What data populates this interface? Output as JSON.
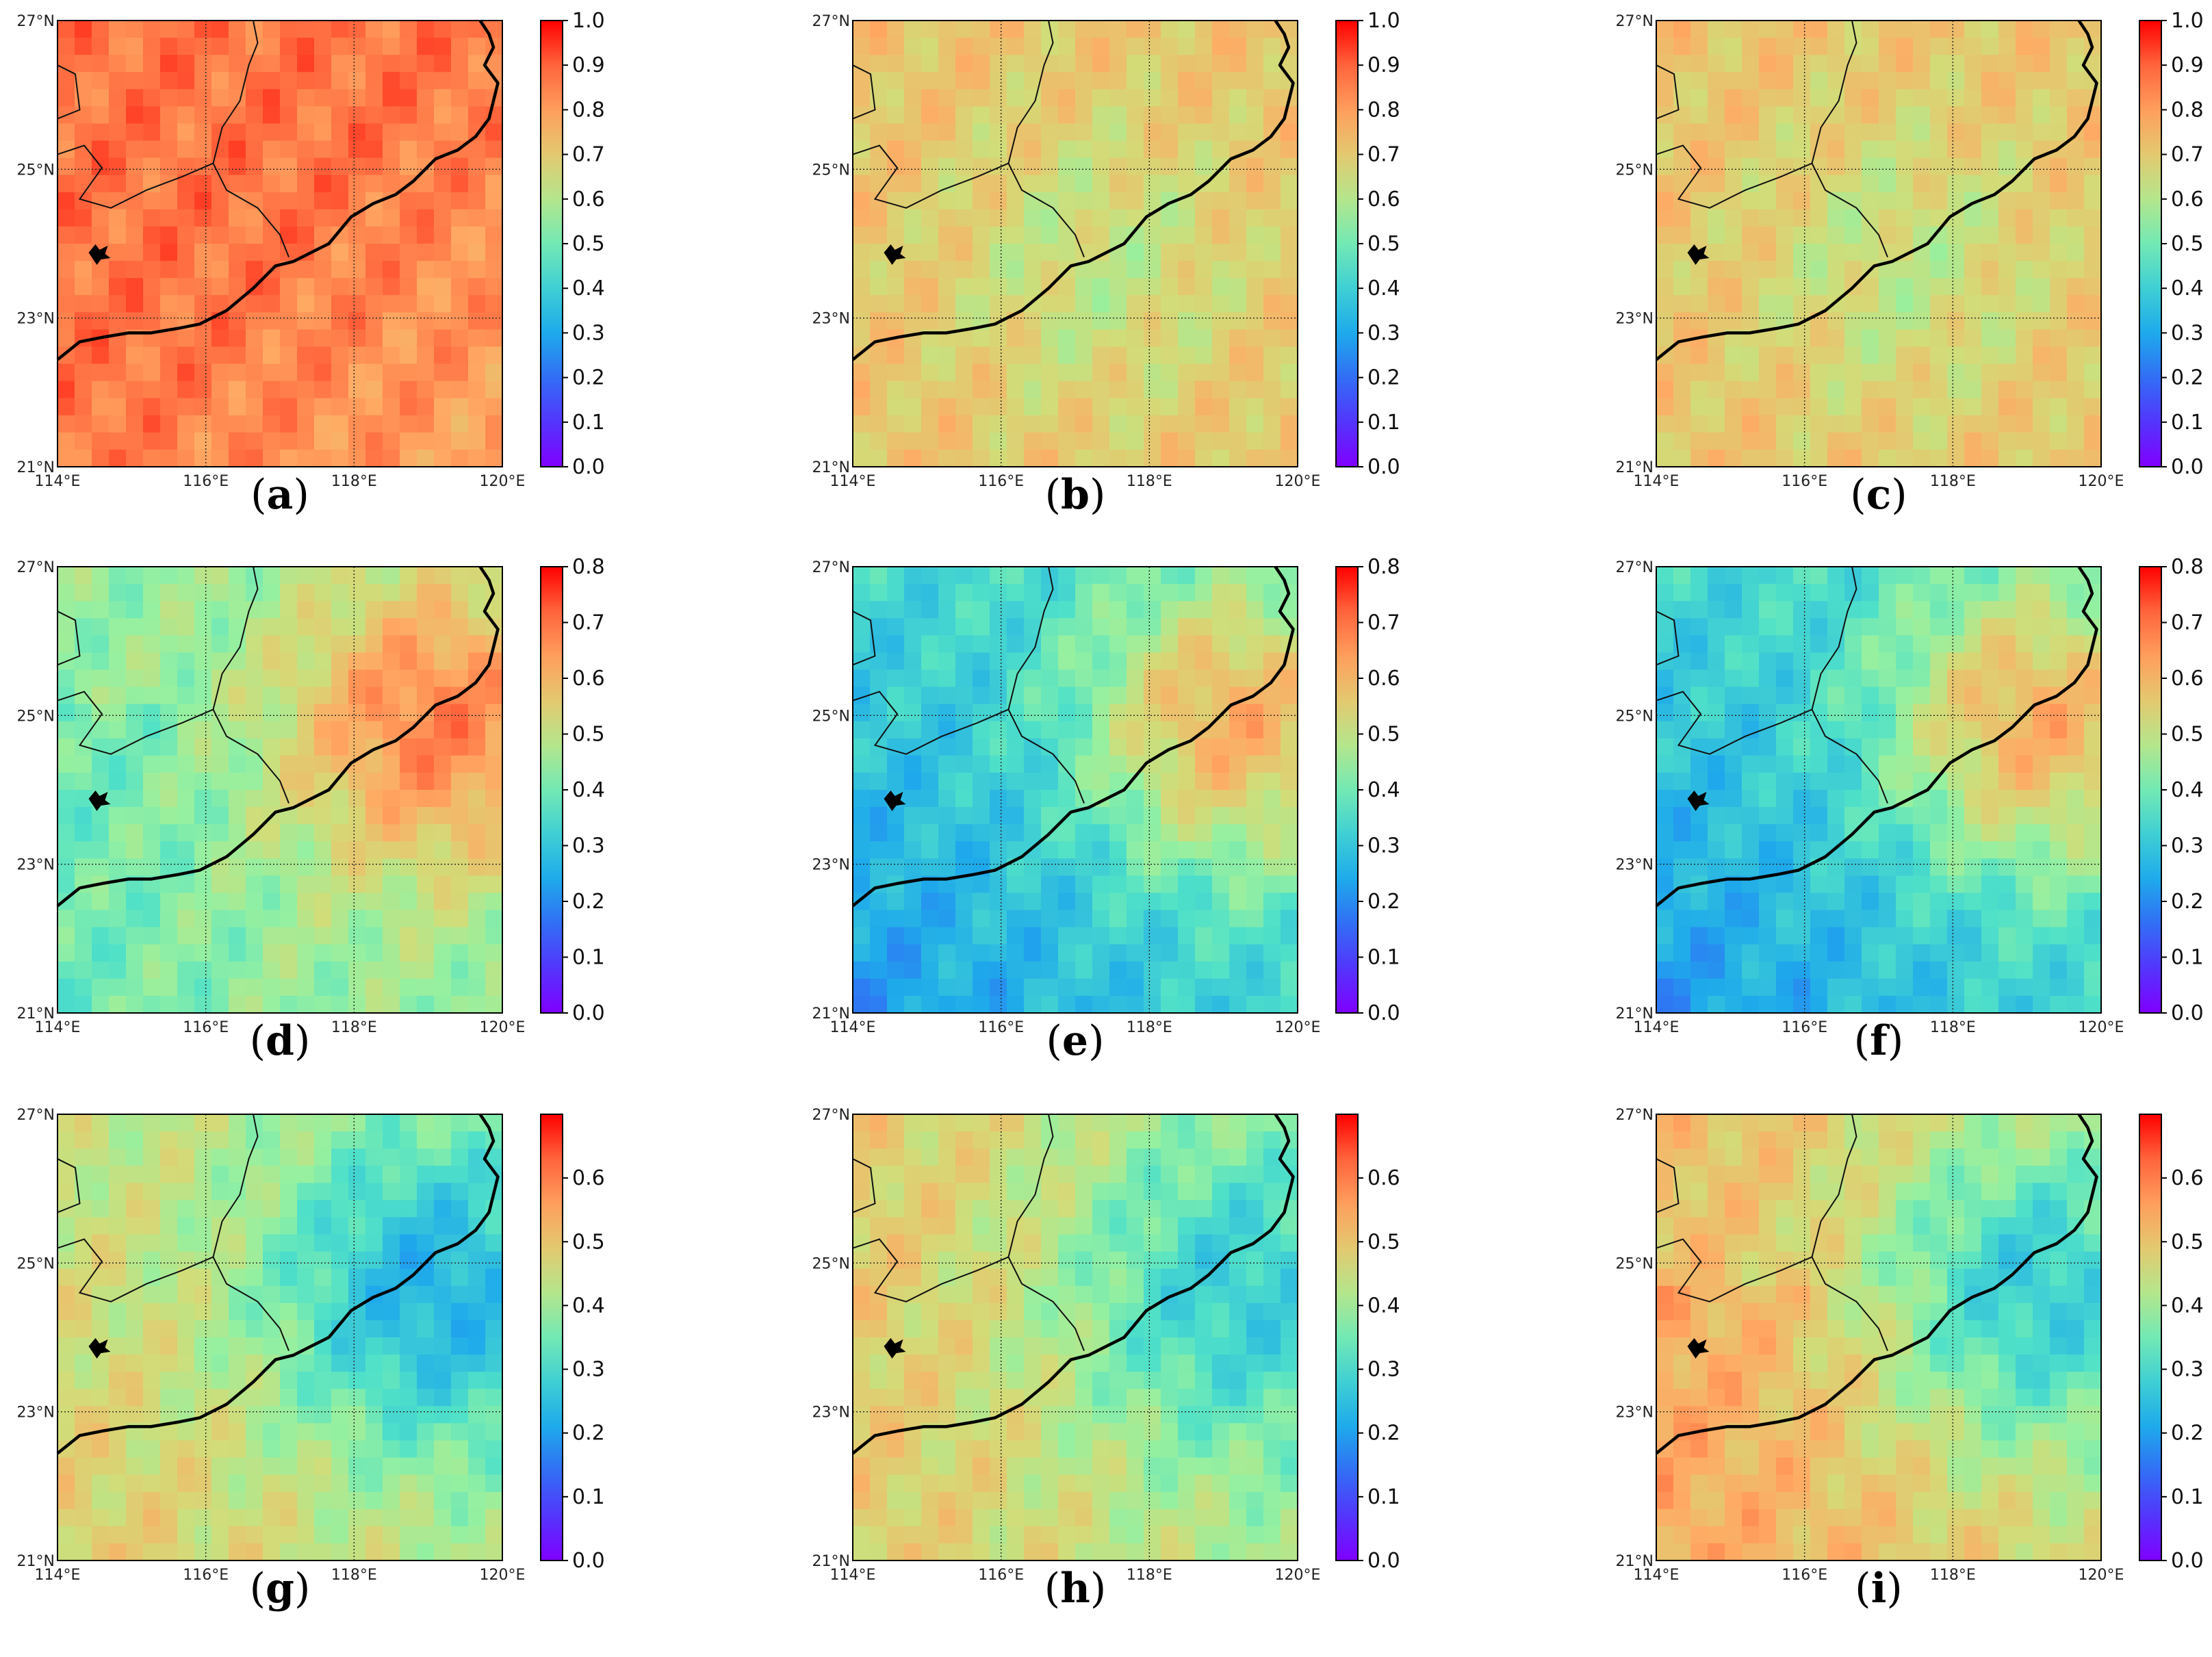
{
  "figure": {
    "panels": [
      {
        "label": "a",
        "row": 0,
        "col": 0,
        "colorbar_max": 1.0,
        "colorbar_ticks": [
          "0.0",
          "0.1",
          "0.2",
          "0.3",
          "0.4",
          "0.5",
          "0.6",
          "0.7",
          "0.8",
          "0.9",
          "1.0"
        ],
        "field": "high_inland"
      },
      {
        "label": "b",
        "row": 0,
        "col": 1,
        "colorbar_max": 1.0,
        "colorbar_ticks": [
          "0.0",
          "0.1",
          "0.2",
          "0.3",
          "0.4",
          "0.5",
          "0.6",
          "0.7",
          "0.8",
          "0.9",
          "1.0"
        ],
        "field": "moderate"
      },
      {
        "label": "c",
        "row": 0,
        "col": 2,
        "colorbar_max": 1.0,
        "colorbar_ticks": [
          "0.0",
          "0.1",
          "0.2",
          "0.3",
          "0.4",
          "0.5",
          "0.6",
          "0.7",
          "0.8",
          "0.9",
          "1.0"
        ],
        "field": "moderate"
      },
      {
        "label": "d",
        "row": 1,
        "col": 0,
        "colorbar_max": 0.8,
        "colorbar_ticks": [
          "0.0",
          "0.1",
          "0.2",
          "0.3",
          "0.4",
          "0.5",
          "0.6",
          "0.7",
          "0.8"
        ],
        "field": "east_high"
      },
      {
        "label": "e",
        "row": 1,
        "col": 1,
        "colorbar_max": 0.8,
        "colorbar_ticks": [
          "0.0",
          "0.1",
          "0.2",
          "0.3",
          "0.4",
          "0.5",
          "0.6",
          "0.7",
          "0.8"
        ],
        "field": "southwest_low"
      },
      {
        "label": "f",
        "row": 1,
        "col": 2,
        "colorbar_max": 0.8,
        "colorbar_ticks": [
          "0.0",
          "0.1",
          "0.2",
          "0.3",
          "0.4",
          "0.5",
          "0.6",
          "0.7",
          "0.8"
        ],
        "field": "southwest_low"
      },
      {
        "label": "g",
        "row": 2,
        "col": 0,
        "colorbar_max": 0.7,
        "colorbar_ticks": [
          "0.0",
          "0.1",
          "0.2",
          "0.3",
          "0.4",
          "0.5",
          "0.6"
        ],
        "field": "east_low"
      },
      {
        "label": "h",
        "row": 2,
        "col": 1,
        "colorbar_max": 0.7,
        "colorbar_ticks": [
          "0.0",
          "0.1",
          "0.2",
          "0.3",
          "0.4",
          "0.5",
          "0.6"
        ],
        "field": "east_low_mild"
      },
      {
        "label": "i",
        "row": 2,
        "col": 2,
        "colorbar_max": 0.7,
        "colorbar_ticks": [
          "0.0",
          "0.1",
          "0.2",
          "0.3",
          "0.4",
          "0.5",
          "0.6"
        ],
        "field": "west_high"
      }
    ],
    "lon_ticks": [
      "114°E",
      "116°E",
      "118°E",
      "120°E"
    ],
    "lat_ticks": [
      "21°N",
      "23°N",
      "25°N",
      "27°N"
    ],
    "extent": {
      "lon_min": 114,
      "lon_max": 120,
      "lat_min": 21,
      "lat_max": 27
    },
    "colormap": "rainbow"
  }
}
